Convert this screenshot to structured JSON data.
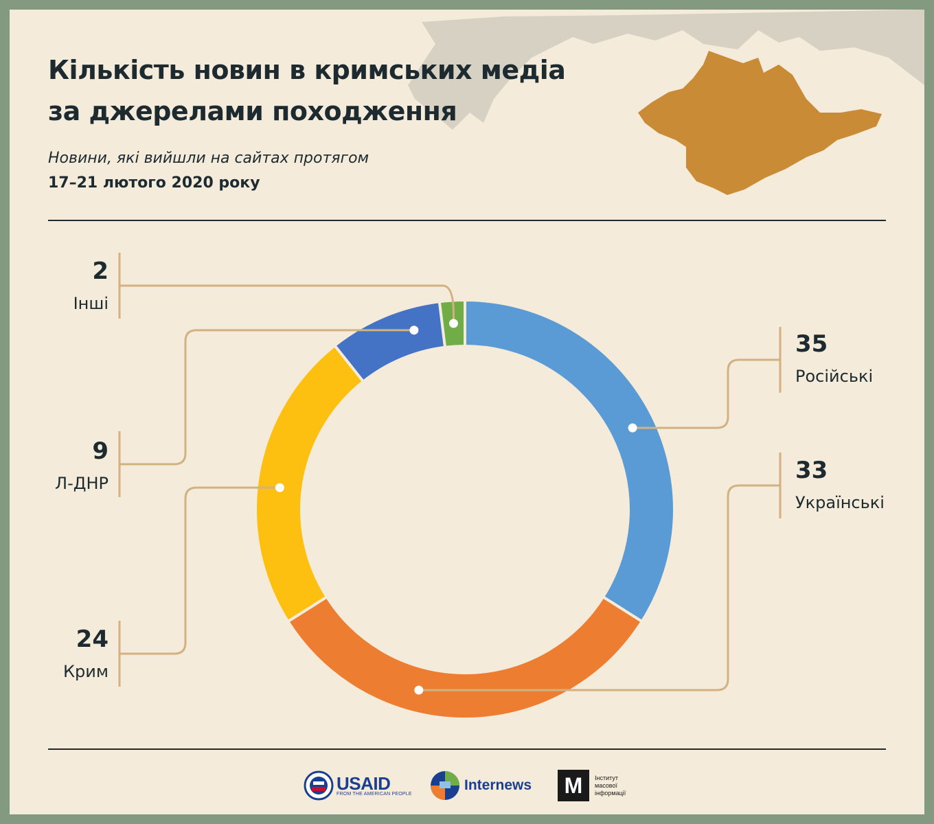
{
  "title_line1": "Кількість новин в кримських медіа",
  "title_line2": "за джерелами походження",
  "subtitle_italic": "Новини, які вийшли на сайтах протягом",
  "subtitle_bold": "17–21 лютого 2020 року",
  "colors": {
    "background": "#f4ebda",
    "frame": "#849a80",
    "map_land": "#d6d1c2",
    "crimea": "#c98b35",
    "leader": "#d1b280",
    "text": "#1d2b30"
  },
  "chart_data": {
    "type": "pie",
    "variant": "donut",
    "title": "Кількість новин в кримських медіа за джерелами походження",
    "order": "clockwise from 12 o'clock",
    "slices": [
      {
        "label": "Російські",
        "value": 35,
        "color": "#5b9bd5"
      },
      {
        "label": "Українські",
        "value": 33,
        "color": "#ed7d31"
      },
      {
        "label": "Крим",
        "value": 24,
        "color": "#fdc010"
      },
      {
        "label": "Л-ДНР",
        "value": 9,
        "color": "#4472c4"
      },
      {
        "label": "Інші",
        "value": 2,
        "color": "#70ad47"
      }
    ]
  },
  "logos": {
    "usaid": "USAID",
    "usaid_tagline": "FROM THE AMERICAN PEOPLE",
    "internews": "Internews",
    "imi_letter": "М",
    "imi_line1": "Інститут",
    "imi_line2": "масової",
    "imi_line3": "інформації"
  }
}
